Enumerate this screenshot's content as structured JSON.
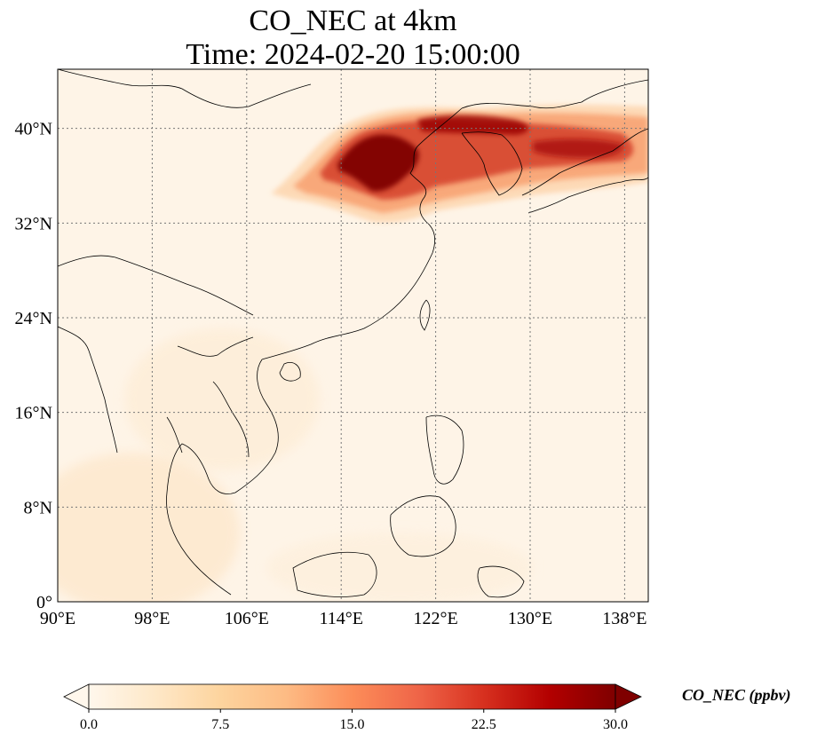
{
  "title": {
    "line1": "CO_NEC at 4km",
    "line2": "Time: 2024-02-20 15:00:00"
  },
  "map": {
    "extent": {
      "lon_min": 90,
      "lon_max": 140,
      "lat_min": 0,
      "lat_max": 45
    },
    "lat_ticks": [
      {
        "value": 40,
        "label": "40°N"
      },
      {
        "value": 32,
        "label": "32°N"
      },
      {
        "value": 24,
        "label": "24°N"
      },
      {
        "value": 16,
        "label": "16°N"
      },
      {
        "value": 8,
        "label": "8°N"
      },
      {
        "value": 0,
        "label": "0°"
      }
    ],
    "lon_ticks": [
      {
        "value": 90,
        "label": "90°E"
      },
      {
        "value": 98,
        "label": "98°E"
      },
      {
        "value": 106,
        "label": "106°E"
      },
      {
        "value": 114,
        "label": "114°E"
      },
      {
        "value": 122,
        "label": "122°E"
      },
      {
        "value": 130,
        "label": "130°E"
      },
      {
        "value": 138,
        "label": "138°E"
      }
    ],
    "gridlines": true
  },
  "colorbar": {
    "label": "CO_NEC (ppbv)",
    "min": 0.0,
    "max": 30.0,
    "ticks": [
      "0.0",
      "7.5",
      "15.0",
      "22.5",
      "30.0"
    ],
    "colormap": "OrRd",
    "extend": "both",
    "stops": [
      "#fff7ec",
      "#fee8c8",
      "#fdd49e",
      "#fdbb84",
      "#fc8d59",
      "#ef6548",
      "#d7301f",
      "#b30000",
      "#7f0000"
    ]
  }
}
